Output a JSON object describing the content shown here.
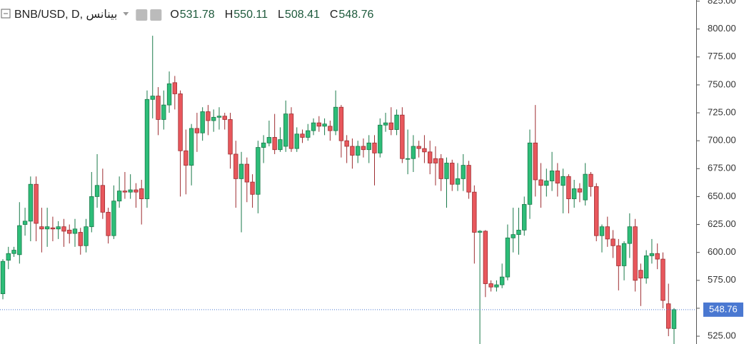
{
  "chart_data": {
    "type": "candlestick",
    "title": "BNB/USD, D, بينانس",
    "ohlc_legend": [
      {
        "label": "O",
        "value": 531.78
      },
      {
        "label": "H",
        "value": 550.11
      },
      {
        "label": "L",
        "value": 508.41
      },
      {
        "label": "C",
        "value": 548.76
      }
    ],
    "up_color": "#2dbd78",
    "up_border": "#1a7a4a",
    "down_color": "#e8575c",
    "down_border": "#9e2d31",
    "last_price_color": "#4a78d1",
    "ylim": [
      518,
      826
    ],
    "yticks": [
      {
        "value": 525,
        "label": "525.00"
      },
      {
        "value": 550,
        "label": "550.00"
      },
      {
        "value": 575,
        "label": "575.00"
      },
      {
        "value": 600,
        "label": "600.00"
      },
      {
        "value": 625,
        "label": "625.00"
      },
      {
        "value": 650,
        "label": "650.00"
      },
      {
        "value": 675,
        "label": "675.00"
      },
      {
        "value": 700,
        "label": "700.00"
      },
      {
        "value": 725,
        "label": "725.00"
      },
      {
        "value": 750,
        "label": "750.00"
      },
      {
        "value": 775,
        "label": "775.00"
      },
      {
        "value": 800,
        "label": "800.00"
      },
      {
        "value": 825,
        "label": "825.00"
      }
    ],
    "open": [
      563,
      593,
      599,
      598,
      625,
      628,
      661,
      623,
      621,
      622,
      621,
      623,
      620,
      617,
      618,
      606,
      623,
      650,
      660,
      636,
      615,
      646,
      655,
      654,
      656,
      657,
      648,
      737,
      740,
      719,
      732,
      752,
      742,
      691,
      678,
      711,
      707,
      726,
      718,
      721,
      722,
      719,
      688,
      666,
      679,
      663,
      652,
      694,
      698,
      703,
      692,
      695,
      724,
      693,
      706,
      703,
      709,
      716,
      713,
      713,
      709,
      730,
      700,
      695,
      687,
      695,
      692,
      698,
      689,
      714,
      716,
      710,
      723,
      684,
      684,
      695,
      693,
      690,
      684,
      684,
      666,
      680,
      661,
      666,
      678,
      654,
      618,
      619,
      572,
      569,
      571,
      578,
      613,
      616,
      620,
      643,
      698,
      665,
      660,
      664,
      673,
      660,
      668,
      648,
      657,
      647,
      670,
      659,
      615,
      623,
      612,
      606,
      588,
      608,
      623,
      584,
      577,
      597,
      599,
      594,
      554,
      531.78
    ],
    "high": [
      594,
      605,
      605,
      645,
      640,
      668,
      668,
      640,
      640,
      632,
      628,
      630,
      625,
      630,
      622,
      630,
      672,
      688,
      675,
      640,
      660,
      668,
      672,
      670,
      662,
      665,
      745,
      794,
      748,
      745,
      762,
      758,
      745,
      710,
      715,
      725,
      730,
      732,
      728,
      730,
      725,
      725,
      700,
      690,
      685,
      670,
      700,
      705,
      718,
      724,
      712,
      736,
      730,
      712,
      710,
      715,
      720,
      722,
      720,
      718,
      745,
      732,
      705,
      702,
      700,
      702,
      705,
      705,
      720,
      725,
      730,
      728,
      730,
      710,
      705,
      700,
      705,
      700,
      695,
      688,
      685,
      683,
      680,
      688,
      682,
      660,
      620,
      620,
      575,
      575,
      590,
      625,
      640,
      640,
      650,
      710,
      732,
      680,
      675,
      690,
      680,
      675,
      670,
      665,
      662,
      680,
      672,
      662,
      625,
      632,
      620,
      612,
      610,
      635,
      630,
      590,
      602,
      612,
      608,
      600,
      572,
      550.11
    ],
    "low": [
      558,
      585,
      596,
      590,
      615,
      610,
      610,
      600,
      605,
      610,
      612,
      605,
      608,
      605,
      598,
      600,
      618,
      640,
      630,
      608,
      612,
      640,
      648,
      648,
      640,
      625,
      640,
      720,
      705,
      710,
      725,
      728,
      650,
      652,
      660,
      690,
      700,
      705,
      708,
      710,
      710,
      675,
      640,
      618,
      645,
      640,
      635,
      680,
      695,
      688,
      690,
      690,
      690,
      690,
      698,
      700,
      705,
      708,
      705,
      700,
      705,
      685,
      680,
      675,
      680,
      685,
      680,
      660,
      685,
      708,
      705,
      705,
      680,
      670,
      672,
      685,
      680,
      670,
      660,
      655,
      640,
      655,
      655,
      655,
      648,
      590,
      518,
      560,
      565,
      565,
      568,
      575,
      600,
      598,
      615,
      630,
      650,
      640,
      650,
      655,
      650,
      635,
      635,
      640,
      645,
      642,
      650,
      610,
      600,
      605,
      595,
      566,
      575,
      595,
      565,
      552,
      572,
      590,
      585,
      550,
      525,
      508.41
    ],
    "close": [
      592,
      599,
      602,
      624,
      628,
      661,
      626,
      621,
      623,
      621,
      623,
      619,
      617,
      621,
      606,
      623,
      650,
      660,
      636,
      615,
      646,
      655,
      654,
      656,
      654,
      648,
      737,
      740,
      719,
      732,
      751,
      742,
      691,
      678,
      711,
      707,
      726,
      718,
      721,
      722,
      719,
      688,
      666,
      679,
      663,
      652,
      694,
      698,
      703,
      692,
      701,
      724,
      693,
      706,
      703,
      709,
      716,
      713,
      715,
      709,
      730,
      700,
      695,
      687,
      695,
      692,
      698,
      689,
      714,
      716,
      710,
      723,
      684,
      684,
      695,
      693,
      690,
      680,
      680,
      666,
      680,
      661,
      666,
      678,
      654,
      618,
      619,
      572,
      569,
      571,
      578,
      613,
      616,
      620,
      643,
      698,
      665,
      660,
      664,
      673,
      662,
      668,
      648,
      657,
      654,
      670,
      659,
      615,
      623,
      612,
      606,
      588,
      608,
      623,
      575,
      577,
      597,
      599,
      594,
      557,
      532,
      548.76
    ]
  }
}
